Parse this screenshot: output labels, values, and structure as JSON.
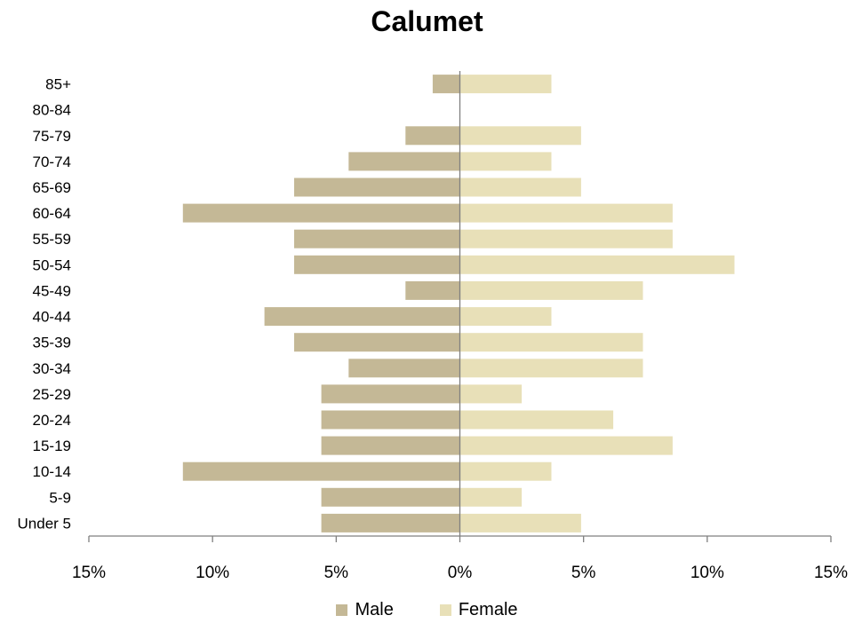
{
  "chart_data": {
    "type": "bar",
    "orientation": "horizontal",
    "title": "Calumet",
    "xlabel": "",
    "ylabel": "",
    "categories": [
      "85+",
      "80-84",
      "75-79",
      "70-74",
      "65-69",
      "60-64",
      "55-59",
      "50-54",
      "45-49",
      "40-44",
      "35-39",
      "30-34",
      "25-29",
      "20-24",
      "15-19",
      "10-14",
      "5-9",
      "Under 5"
    ],
    "series": [
      {
        "name": "Male",
        "color": "#c4b896",
        "values": [
          -1.1,
          0,
          -2.2,
          -4.5,
          -6.7,
          -11.2,
          -6.7,
          -6.7,
          -2.2,
          -7.9,
          -6.7,
          -4.5,
          -5.6,
          -5.6,
          -5.6,
          -11.2,
          -5.6,
          -5.6
        ]
      },
      {
        "name": "Female",
        "color": "#e8e0b8",
        "values": [
          3.7,
          0,
          4.9,
          3.7,
          4.9,
          8.6,
          8.6,
          11.1,
          7.4,
          3.7,
          7.4,
          7.4,
          2.5,
          6.2,
          8.6,
          3.7,
          2.5,
          4.9
        ]
      }
    ],
    "xlim": [
      -15,
      15
    ],
    "xticks": [
      -15,
      -10,
      -5,
      0,
      5,
      10,
      15
    ],
    "xtick_labels": [
      "15%",
      "10%",
      "5%",
      "0%",
      "5%",
      "10%",
      "15%"
    ],
    "grid": false,
    "legend_position": "bottom"
  }
}
